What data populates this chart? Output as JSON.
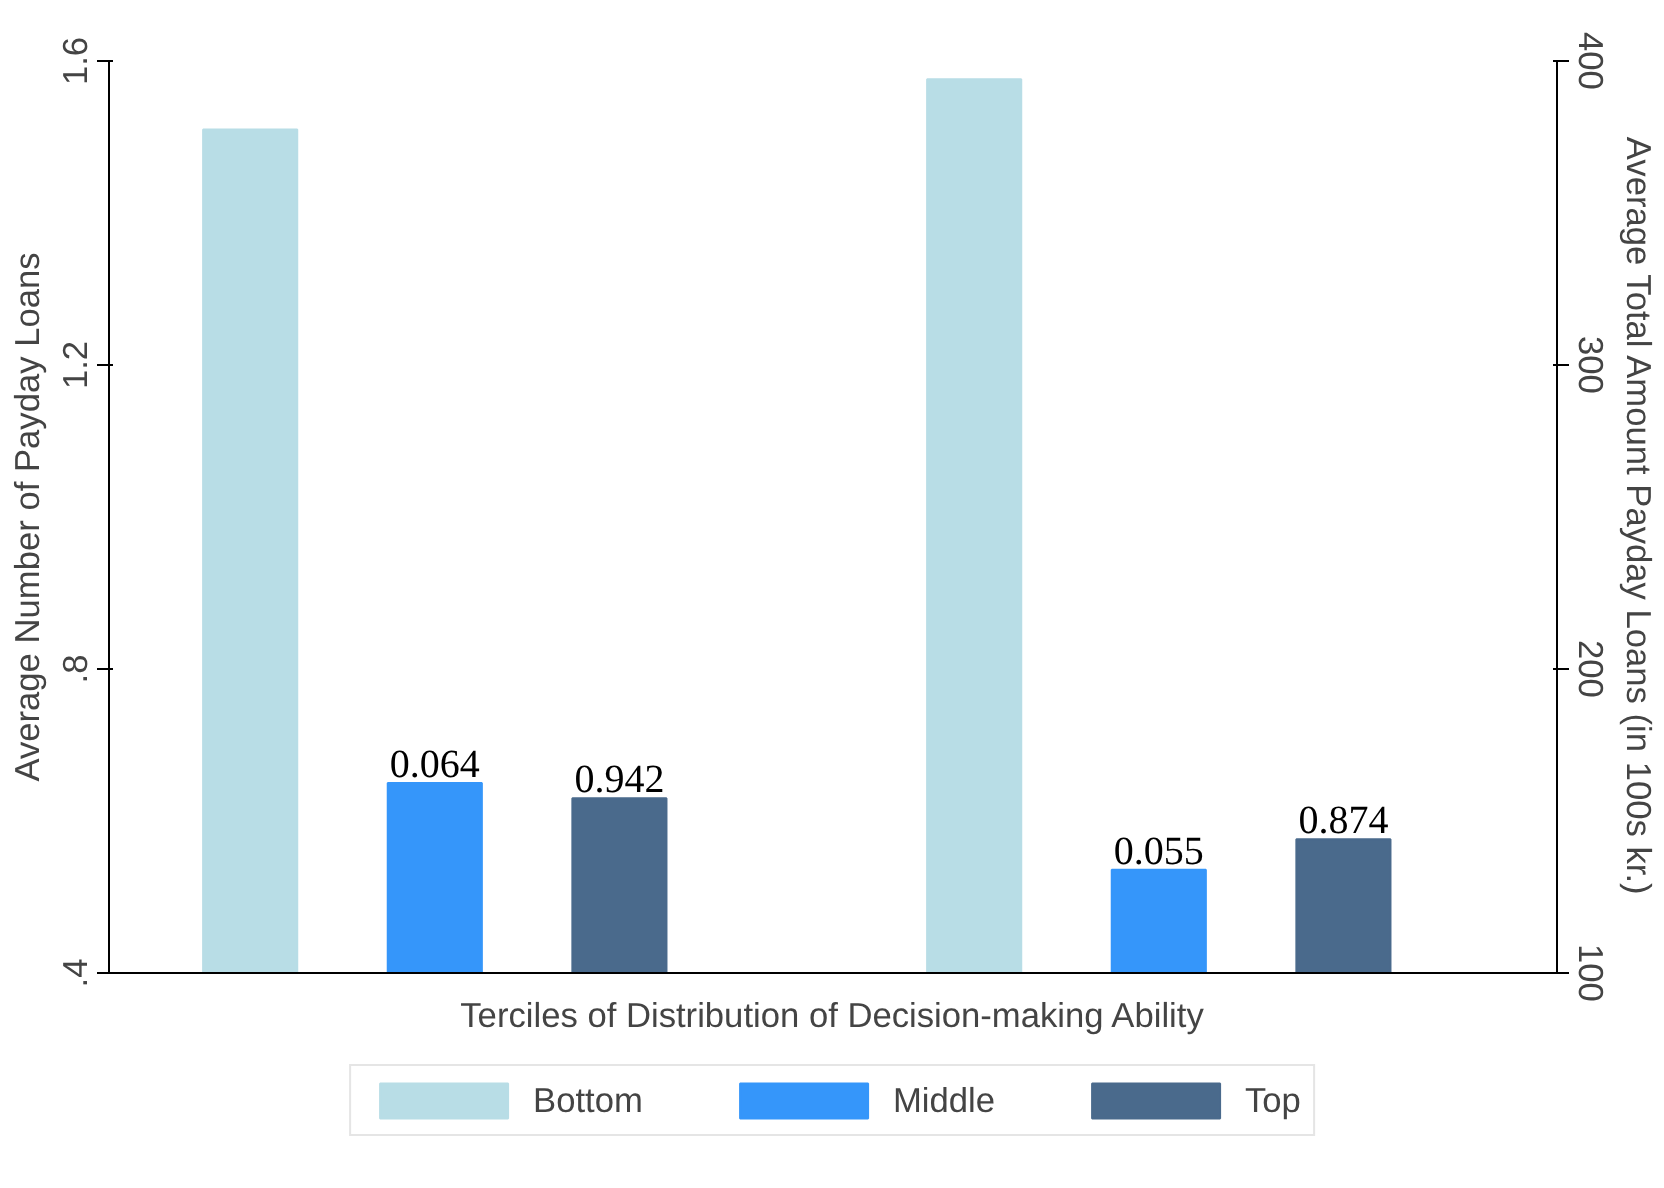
{
  "chart_data": {
    "type": "bar",
    "categories": [
      null,
      null
    ],
    "xlabel": "Terciles of Distribution of Decision-making Ability",
    "ylabel": "Average Number of Payday Loans",
    "y2label": "Average Total Amount Payday Loans (in 100s kr.)",
    "series": [
      {
        "name": "Bottom",
        "color": "#b8dde6",
        "values": [
          1.51,
          null
        ]
      },
      {
        "name": "Middle",
        "color": "#3596fa",
        "values": [
          0.65,
          null
        ]
      },
      {
        "name": "Top",
        "color": "#4a6a8c",
        "values": [
          0.63,
          null
        ]
      },
      {
        "color": "#b8dde6",
        "axis": "y2",
        "values": [
          null,
          394
        ]
      },
      {
        "color": "#3596fa",
        "axis": "y2",
        "values": [
          null,
          134
        ]
      },
      {
        "color": "#4a6a8c",
        "axis": "y2",
        "values": [
          null,
          144
        ]
      }
    ],
    "annotations": [
      "0.064",
      "0.942",
      "0.055",
      "0.874"
    ],
    "ylim": [
      0.4,
      1.6
    ],
    "yticks": [
      {
        "value": 0.4,
        "label": ".4"
      },
      {
        "value": 0.8,
        "label": ".8"
      },
      1.2,
      1.6
    ],
    "y2lim": [
      100,
      400
    ],
    "y2ticks": [
      100,
      200,
      300,
      400
    ],
    "grid": false,
    "legend": "bottom"
  }
}
